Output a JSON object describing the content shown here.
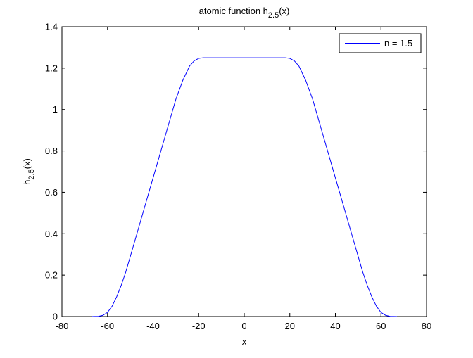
{
  "chart_data": {
    "type": "line",
    "title": {
      "main": "atomic function h",
      "sub": "2.5",
      "tail": "(x)"
    },
    "xlabel": "x",
    "ylabel": {
      "main": "h",
      "sub": "2.5",
      "tail": "(x)"
    },
    "xlim": [
      -80,
      80
    ],
    "ylim": [
      0,
      1.4
    ],
    "xticks": [
      -80,
      -60,
      -40,
      -20,
      0,
      20,
      40,
      60,
      80
    ],
    "yticks": [
      0,
      0.2,
      0.4,
      0.6,
      0.8,
      1,
      1.2,
      1.4
    ],
    "xtick_labels": [
      "-80",
      "-60",
      "-40",
      "-20",
      "0",
      "20",
      "40",
      "60",
      "80"
    ],
    "ytick_labels": [
      "0",
      "0.2",
      "0.4",
      "0.6",
      "0.8",
      "1",
      "1.2",
      "1.4"
    ],
    "grid": false,
    "legend_position": "top-right",
    "series": [
      {
        "name": "n = 1.5",
        "color": "#0000ff",
        "x": [
          -67,
          -64,
          -62,
          -60,
          -58,
          -56,
          -54,
          -52,
          -50,
          -45,
          -40,
          -35,
          -30,
          -27,
          -24,
          -22,
          -20,
          -18,
          -16,
          -10,
          0,
          10,
          16,
          18,
          20,
          22,
          24,
          27,
          30,
          35,
          40,
          45,
          50,
          52,
          54,
          56,
          58,
          60,
          62,
          64,
          67
        ],
        "y": [
          0,
          0.001,
          0.006,
          0.02,
          0.05,
          0.095,
          0.15,
          0.215,
          0.29,
          0.48,
          0.67,
          0.86,
          1.05,
          1.14,
          1.21,
          1.235,
          1.247,
          1.25,
          1.25,
          1.25,
          1.25,
          1.25,
          1.25,
          1.25,
          1.247,
          1.235,
          1.21,
          1.14,
          1.05,
          0.86,
          0.67,
          0.48,
          0.29,
          0.215,
          0.15,
          0.095,
          0.05,
          0.02,
          0.006,
          0.001,
          0
        ]
      }
    ]
  }
}
